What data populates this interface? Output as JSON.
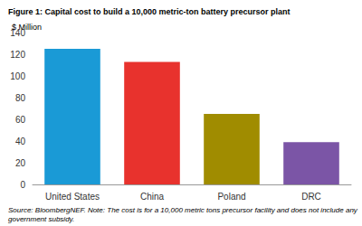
{
  "chart_data": {
    "type": "bar",
    "title": "Figure 1: Capital cost to build a 10,000 metric-ton battery precursor plant",
    "y_label": "$ Million",
    "categories": [
      "United States",
      "China",
      "Poland",
      "DRC"
    ],
    "values": [
      125,
      113,
      65,
      39
    ],
    "colors": [
      "#1a9ad6",
      "#e8322d",
      "#a08c00",
      "#7b55a6"
    ],
    "ylim": [
      0,
      140
    ],
    "yticks": [
      0,
      20,
      40,
      60,
      80,
      100,
      120,
      140
    ],
    "grid": false,
    "annotations": [
      "Source: BloombergNEF. Note: The cost is for a 10,000 metric tons precursor facility and does not include any government subsidy."
    ]
  }
}
